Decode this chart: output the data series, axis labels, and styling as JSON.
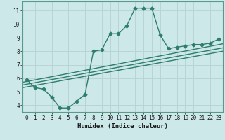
{
  "xlabel": "Humidex (Indice chaleur)",
  "ylabel": "",
  "bg_color": "#cce8e8",
  "grid_color": "#b8d4d4",
  "line_color": "#2d7d6e",
  "xlim": [
    -0.5,
    23.5
  ],
  "ylim": [
    3.5,
    11.7
  ],
  "xticks": [
    0,
    1,
    2,
    3,
    4,
    5,
    6,
    7,
    8,
    9,
    10,
    11,
    12,
    13,
    14,
    15,
    16,
    17,
    18,
    19,
    20,
    21,
    22,
    23
  ],
  "yticks": [
    4,
    5,
    6,
    7,
    8,
    9,
    10,
    11
  ],
  "line1_x": [
    0,
    1,
    2,
    3,
    4,
    5,
    6,
    7,
    8,
    9,
    10,
    11,
    12,
    13,
    14,
    15,
    16,
    17,
    18,
    19,
    20,
    21,
    22,
    23
  ],
  "line1_y": [
    5.9,
    5.3,
    5.2,
    4.6,
    3.8,
    3.8,
    4.3,
    4.8,
    8.0,
    8.1,
    9.3,
    9.3,
    9.9,
    11.2,
    11.2,
    11.2,
    9.2,
    8.2,
    8.3,
    8.4,
    8.5,
    8.5,
    8.6,
    8.9
  ],
  "line2_x": [
    -0.5,
    23.5
  ],
  "line2_y": [
    5.3,
    8.0
  ],
  "line3_x": [
    -0.5,
    23.5
  ],
  "line3_y": [
    5.5,
    8.25
  ],
  "line4_x": [
    -0.5,
    23.5
  ],
  "line4_y": [
    5.7,
    8.55
  ],
  "marker": "D",
  "markersize": 2.5,
  "linewidth": 1.0
}
